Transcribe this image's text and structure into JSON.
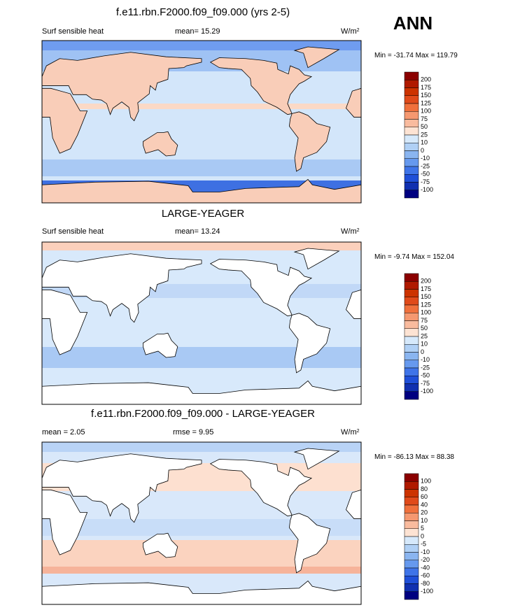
{
  "label": "ANN",
  "colorbar_colors": [
    "#8b0000",
    "#b01a00",
    "#cc3300",
    "#e04a1a",
    "#f0703c",
    "#f59870",
    "#f9bb9e",
    "#fde3d3",
    "#d6e9fb",
    "#b0d0f5",
    "#8ab5f0",
    "#6699ee",
    "#3f74e8",
    "#1f4fd8",
    "#1030b0",
    "#000080"
  ],
  "panels": [
    {
      "title": "f.e11.rbn.F2000.f09_f09.000 (yrs 2-5)",
      "left": "Surf sensible heat",
      "center": "mean=  15.29",
      "units": {
        "base": "W/m",
        "sup": "2"
      },
      "range": "Min = -31.74 Max = 119.79",
      "colorbar": [
        200,
        175,
        150,
        125,
        100,
        75,
        50,
        25,
        10,
        0,
        -10,
        -25,
        -50,
        -75,
        -100
      ]
    },
    {
      "title": "LARGE-YEAGER",
      "left": "Surf sensible heat",
      "center": "mean=  13.24",
      "units": {
        "base": "W/m",
        "sup": "2"
      },
      "range": "Min =  -9.74 Max = 152.04",
      "colorbar": [
        200,
        175,
        150,
        125,
        100,
        75,
        50,
        25,
        10,
        0,
        -10,
        -25,
        -50,
        -75,
        -100
      ]
    },
    {
      "title": "f.e11.rbn.F2000.f09_f09.000 - LARGE-YEAGER",
      "left": "mean =   2.05",
      "center": "rmse =   9.95",
      "units": {
        "base": "W/m",
        "sup": "2"
      },
      "range": "Min = -86.13 Max =  88.38",
      "colorbar": [
        100,
        80,
        60,
        40,
        20,
        10,
        5,
        0,
        -5,
        -10,
        -20,
        -40,
        -60,
        -80,
        -100
      ]
    }
  ]
}
